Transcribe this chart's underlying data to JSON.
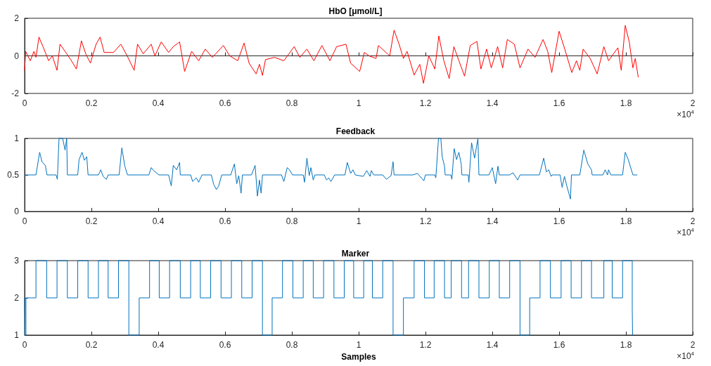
{
  "chart_data": [
    {
      "type": "line",
      "title": "HbO [μmol/L]",
      "color": "#ff0000",
      "xlim": [
        0,
        2
      ],
      "xticks": [
        0,
        0.2,
        0.4,
        0.6,
        0.8,
        1,
        1.2,
        1.4,
        1.6,
        1.8,
        2
      ],
      "ylim": [
        -2,
        2
      ],
      "yticks": [
        -2,
        0,
        2
      ],
      "annotations": [
        "×10$^{4}$"
      ],
      "x": [
        0,
        0.003,
        0.017,
        0.028,
        0.034,
        0.043,
        0.055,
        0.072,
        0.083,
        0.097,
        0.106,
        0.121,
        0.138,
        0.155,
        0.17,
        0.183,
        0.197,
        0.214,
        0.226,
        0.238,
        0.266,
        0.288,
        0.307,
        0.328,
        0.338,
        0.355,
        0.379,
        0.39,
        0.409,
        0.431,
        0.445,
        0.464,
        0.479,
        0.5,
        0.521,
        0.541,
        0.562,
        0.595,
        0.614,
        0.638,
        0.657,
        0.672,
        0.693,
        0.703,
        0.712,
        0.721,
        0.748,
        0.776,
        0.807,
        0.824,
        0.845,
        0.866,
        0.89,
        0.914,
        0.934,
        0.962,
        0.976,
        1.003,
        1.017,
        1.031,
        1.052,
        1.059,
        1.093,
        1.106,
        1.121,
        1.134,
        1.145,
        1.166,
        1.183,
        1.194,
        1.21,
        1.228,
        1.24,
        1.255,
        1.271,
        1.285,
        1.3,
        1.317,
        1.334,
        1.354,
        1.366,
        1.383,
        1.397,
        1.416,
        1.431,
        1.445,
        1.466,
        1.483,
        1.507,
        1.528,
        1.552,
        1.566,
        1.578,
        1.6,
        1.617,
        1.638,
        1.652,
        1.662,
        1.672,
        1.693,
        1.714,
        1.734,
        1.748,
        1.776,
        1.786,
        1.798,
        1.81,
        1.821,
        1.828,
        1.837
      ],
      "values": [
        -0.77,
        0.24,
        -0.26,
        0.24,
        -0.08,
        1.0,
        0.49,
        -0.26,
        0,
        -0.77,
        0.62,
        0.24,
        -0.2,
        -0.7,
        0.8,
        0.11,
        -0.39,
        0.62,
        1.0,
        0.18,
        0.18,
        0.62,
        0,
        -0.77,
        0.62,
        0.11,
        0.62,
        0,
        0.74,
        0.18,
        0.49,
        0.74,
        -0.83,
        0.24,
        -0.26,
        0.36,
        -0.08,
        0.55,
        0,
        -0.26,
        0.68,
        -0.39,
        -0.96,
        -0.45,
        -1.04,
        -0.2,
        -0.08,
        -0.26,
        0.49,
        -0.08,
        0.36,
        -0.26,
        0.55,
        -0.26,
        0.49,
        0.62,
        -0.39,
        -0.83,
        0.18,
        0,
        -0.14,
        0.55,
        0,
        1.37,
        0.62,
        -0.14,
        0.24,
        -1.02,
        -0.45,
        -1.46,
        0,
        -0.7,
        1.06,
        -0.26,
        -1.21,
        0.49,
        -0.26,
        -1.08,
        0.55,
        0.77,
        -0.7,
        0.36,
        -0.64,
        0.49,
        -0.64,
        0.87,
        0.62,
        -0.64,
        0.36,
        -0.08,
        0.87,
        0.24,
        -0.89,
        1.31,
        0.36,
        -0.89,
        -0.26,
        -0.77,
        0.36,
        -0.14,
        -0.96,
        0.49,
        -0.26,
        0.43,
        -0.77,
        1.62,
        0.74,
        -0.64,
        -0.14,
        -1.14
      ]
    },
    {
      "type": "line",
      "title": "Feedback",
      "color": "#0072bd",
      "xlim": [
        0,
        2
      ],
      "xticks": [
        0,
        0.2,
        0.4,
        0.6,
        0.8,
        1,
        1.2,
        1.4,
        1.6,
        1.8,
        2
      ],
      "ylim": [
        0,
        1
      ],
      "yticks": [
        0,
        0.5,
        1
      ],
      "annotations": [
        "×10$^{4}$"
      ],
      "x": [
        0,
        0.034,
        0.045,
        0.052,
        0.062,
        0.067,
        0.094,
        0.098,
        0.103,
        0.114,
        0.121,
        0.126,
        0.128,
        0.159,
        0.163,
        0.172,
        0.179,
        0.186,
        0.19,
        0.221,
        0.228,
        0.235,
        0.245,
        0.25,
        0.283,
        0.291,
        0.3,
        0.308,
        0.372,
        0.379,
        0.386,
        0.402,
        0.431,
        0.439,
        0.445,
        0.455,
        0.464,
        0.466,
        0.497,
        0.503,
        0.514,
        0.521,
        0.531,
        0.559,
        0.566,
        0.574,
        0.581,
        0.59,
        0.617,
        0.628,
        0.635,
        0.641,
        0.648,
        0.652,
        0.679,
        0.69,
        0.697,
        0.703,
        0.708,
        0.712,
        0.769,
        0.776,
        0.786,
        0.793,
        0.802,
        0.834,
        0.838,
        0.845,
        0.852,
        0.857,
        0.864,
        0.869,
        0.897,
        0.904,
        0.91,
        0.917,
        0.928,
        0.959,
        0.966,
        0.976,
        0.983,
        0.99,
        1.014,
        1.024,
        1.034,
        1.038,
        1.045,
        1.072,
        1.083,
        1.097,
        1.103,
        1.106,
        1.162,
        1.176,
        1.195,
        1.2,
        1.228,
        1.231,
        1.239,
        1.246,
        1.25,
        1.257,
        1.259,
        1.276,
        1.279,
        1.286,
        1.293,
        1.3,
        1.307,
        1.309,
        1.328,
        1.33,
        1.338,
        1.347,
        1.357,
        1.36,
        1.39,
        1.4,
        1.41,
        1.417,
        1.421,
        1.452,
        1.462,
        1.476,
        1.483,
        1.541,
        1.554,
        1.562,
        1.569,
        1.576,
        1.579,
        1.603,
        1.609,
        1.616,
        1.623,
        1.634,
        1.637,
        1.662,
        1.674,
        1.686,
        1.697,
        1.699,
        1.731,
        1.738,
        1.745,
        1.748,
        1.755,
        1.79,
        1.798,
        1.807,
        1.821,
        1.834
      ],
      "values": [
        0.5,
        0.5,
        0.81,
        0.68,
        0.63,
        0.5,
        0.5,
        0.44,
        1.0,
        1.0,
        0.84,
        1.0,
        0.5,
        0.5,
        0.71,
        0.81,
        0.7,
        0.75,
        0.5,
        0.5,
        0.57,
        0.48,
        0.44,
        0.5,
        0.5,
        0.87,
        0.62,
        0.5,
        0.5,
        0.6,
        0.56,
        0.5,
        0.5,
        0.35,
        0.63,
        0.57,
        0.67,
        0.5,
        0.5,
        0.41,
        0.46,
        0.4,
        0.5,
        0.5,
        0.37,
        0.3,
        0.35,
        0.5,
        0.5,
        0.65,
        0.38,
        0.49,
        0.25,
        0.5,
        0.5,
        0.63,
        0.21,
        0.43,
        0.25,
        0.5,
        0.5,
        0.41,
        0.6,
        0.57,
        0.5,
        0.5,
        0.4,
        0.73,
        0.49,
        0.6,
        0.43,
        0.5,
        0.5,
        0.43,
        0.46,
        0.41,
        0.5,
        0.5,
        0.67,
        0.52,
        0.57,
        0.5,
        0.48,
        0.56,
        0.48,
        0.56,
        0.5,
        0.5,
        0.44,
        0.49,
        0.68,
        0.5,
        0.5,
        0.52,
        0.42,
        0.5,
        0.5,
        0.46,
        1.0,
        1.0,
        0.75,
        0.62,
        0.5,
        0.5,
        0.44,
        0.86,
        0.71,
        0.81,
        0.65,
        0.5,
        0.5,
        0.4,
        0.94,
        0.73,
        1.0,
        0.5,
        0.5,
        0.6,
        0.38,
        0.62,
        0.5,
        0.5,
        0.53,
        0.43,
        0.5,
        0.5,
        0.73,
        0.54,
        0.57,
        0.48,
        0.5,
        0.5,
        0.33,
        0.48,
        0.35,
        0.17,
        0.5,
        0.5,
        0.84,
        0.65,
        0.57,
        0.5,
        0.5,
        0.57,
        0.5,
        0.57,
        0.5,
        0.5,
        0.81,
        0.71,
        0.5,
        0.5
      ]
    },
    {
      "type": "step",
      "title": "Marker",
      "xlabel": "Samples",
      "color": "#0072bd",
      "xlim": [
        0,
        2
      ],
      "xticks": [
        0,
        0.2,
        0.4,
        0.6,
        0.8,
        1,
        1.2,
        1.4,
        1.6,
        1.8,
        2
      ],
      "ylim": [
        1,
        3
      ],
      "yticks": [
        1,
        2,
        3
      ],
      "annotations": [
        "×10$^{4}$"
      ],
      "x": [
        0,
        0.001,
        0.004,
        0.034,
        0.066,
        0.097,
        0.128,
        0.159,
        0.19,
        0.221,
        0.25,
        0.281,
        0.312,
        0.343,
        0.374,
        0.403,
        0.434,
        0.466,
        0.497,
        0.526,
        0.557,
        0.588,
        0.619,
        0.65,
        0.681,
        0.712,
        0.741,
        0.772,
        0.803,
        0.834,
        0.864,
        0.895,
        0.926,
        0.957,
        0.985,
        1.015,
        1.041,
        1.072,
        1.103,
        1.134,
        1.166,
        1.197,
        1.226,
        1.257,
        1.277,
        1.308,
        1.329,
        1.36,
        1.391,
        1.421,
        1.452,
        1.483,
        1.512,
        1.543,
        1.574,
        1.606,
        1.636,
        1.667,
        1.697,
        1.734,
        1.759,
        1.79,
        1.819,
        1.82
      ],
      "values": [
        2,
        1,
        2,
        3,
        2,
        3,
        2,
        3,
        2,
        3,
        2,
        3,
        1,
        2,
        3,
        2,
        3,
        2,
        3,
        2,
        3,
        2,
        3,
        2,
        3,
        1,
        2,
        3,
        2,
        3,
        2,
        3,
        2,
        3,
        2,
        3,
        2,
        3,
        1,
        2,
        3,
        2,
        3,
        2,
        3,
        2,
        3,
        2,
        3,
        2,
        3,
        1,
        2,
        3,
        2,
        3,
        2,
        3,
        2,
        3,
        2,
        3,
        1.7,
        1
      ]
    }
  ]
}
